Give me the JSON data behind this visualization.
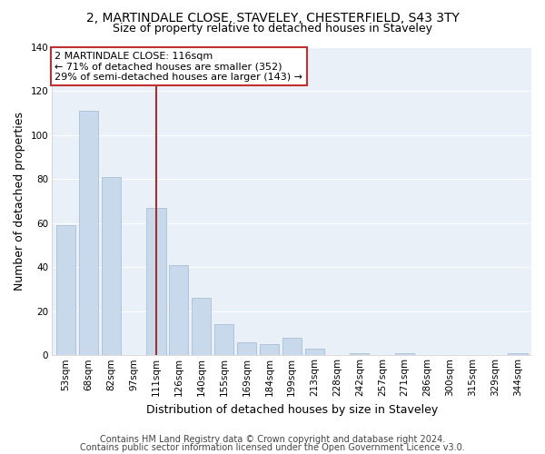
{
  "title": "2, MARTINDALE CLOSE, STAVELEY, CHESTERFIELD, S43 3TY",
  "subtitle": "Size of property relative to detached houses in Staveley",
  "xlabel": "Distribution of detached houses by size in Staveley",
  "ylabel": "Number of detached properties",
  "bar_labels": [
    "53sqm",
    "68sqm",
    "82sqm",
    "97sqm",
    "111sqm",
    "126sqm",
    "140sqm",
    "155sqm",
    "169sqm",
    "184sqm",
    "199sqm",
    "213sqm",
    "228sqm",
    "242sqm",
    "257sqm",
    "271sqm",
    "286sqm",
    "300sqm",
    "315sqm",
    "329sqm",
    "344sqm"
  ],
  "bar_values": [
    59,
    111,
    81,
    0,
    67,
    41,
    26,
    14,
    6,
    5,
    8,
    3,
    0,
    1,
    0,
    1,
    0,
    0,
    0,
    0,
    1
  ],
  "bar_color": "#c8d9eb",
  "bar_edge_color": "#a0b8d0",
  "highlight_line_index": 4,
  "highlight_line_color": "#a03030",
  "annotation_title": "2 MARTINDALE CLOSE: 116sqm",
  "annotation_line1": "← 71% of detached houses are smaller (352)",
  "annotation_line2": "29% of semi-detached houses are larger (143) →",
  "annotation_box_facecolor": "#ffffff",
  "annotation_box_edgecolor": "#c03030",
  "ylim": [
    0,
    140
  ],
  "yticks": [
    0,
    20,
    40,
    60,
    80,
    100,
    120,
    140
  ],
  "footer_line1": "Contains HM Land Registry data © Crown copyright and database right 2024.",
  "footer_line2": "Contains public sector information licensed under the Open Government Licence v3.0.",
  "background_color": "#ffffff",
  "plot_bg_color": "#eaf0f8",
  "grid_color": "#ffffff",
  "title_fontsize": 10,
  "subtitle_fontsize": 9,
  "axis_label_fontsize": 9,
  "tick_fontsize": 7.5,
  "annotation_fontsize": 8,
  "footer_fontsize": 7
}
